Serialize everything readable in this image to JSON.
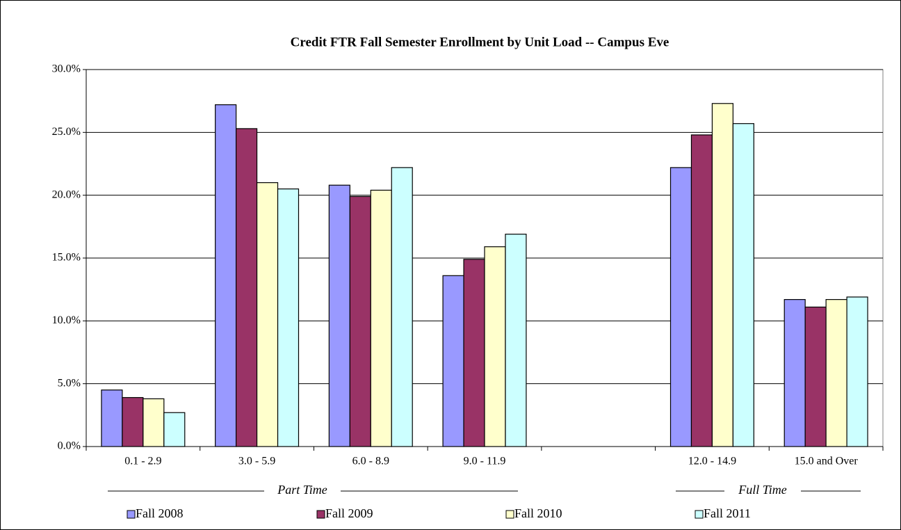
{
  "chart_data": {
    "type": "bar",
    "title": "Credit FTR Fall Semester Enrollment by Unit Load -- Campus Eve",
    "categories": [
      "0.1 - 2.9",
      "3.0 - 5.9",
      "6.0 - 8.9",
      "9.0 - 11.9",
      null,
      "12.0 - 14.9",
      "15.0 and Over"
    ],
    "series": [
      {
        "name": "Fall 2008",
        "color": "#9999ff",
        "values": [
          4.5,
          27.2,
          20.8,
          13.6,
          null,
          22.2,
          11.7
        ]
      },
      {
        "name": "Fall 2009",
        "color": "#993366",
        "values": [
          3.9,
          25.3,
          19.9,
          14.9,
          null,
          24.8,
          11.1
        ]
      },
      {
        "name": "Fall 2010",
        "color": "#ffffcc",
        "values": [
          3.8,
          21.0,
          20.4,
          15.9,
          null,
          27.3,
          11.7
        ]
      },
      {
        "name": "Fall 2011",
        "color": "#ccffff",
        "values": [
          2.7,
          20.5,
          22.2,
          16.9,
          null,
          25.7,
          11.9
        ]
      }
    ],
    "ylim": [
      0,
      30
    ],
    "yticks": [
      {
        "value": 0,
        "label": "0.0%"
      },
      {
        "value": 5,
        "label": "5.0%"
      },
      {
        "value": 10,
        "label": "10.0%"
      },
      {
        "value": 15,
        "label": "15.0%"
      },
      {
        "value": 20,
        "label": "20.0%"
      },
      {
        "value": 25,
        "label": "25.0%"
      },
      {
        "value": 30,
        "label": "30.0%"
      }
    ],
    "grid": true,
    "legend": "bottom",
    "annotations": [
      "Part Time",
      "Full Time"
    ]
  }
}
